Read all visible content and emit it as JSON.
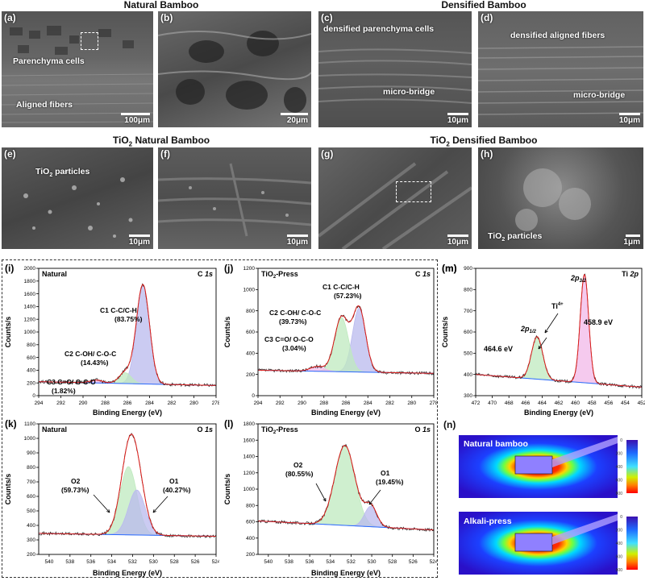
{
  "headers": {
    "natural": "Natural Bamboo",
    "densified": "Densified Bamboo",
    "tio2_natural_prefix": "TiO",
    "tio2_natural_sub": "2",
    "tio2_natural_rest": " Natural Bamboo",
    "tio2_densified_prefix": "TiO",
    "tio2_densified_sub": "2",
    "tio2_densified_rest": " Densified Bamboo"
  },
  "sem_panels": {
    "a": {
      "label": "(a)",
      "ann1": "Parenchyma cells",
      "ann2": "Aligned fibers",
      "scale": "100μm"
    },
    "b": {
      "label": "(b)",
      "scale": "20μm"
    },
    "c": {
      "label": "(c)",
      "ann1": "densified parenchyma cells",
      "ann2": "micro-bridge",
      "scale": "10μm"
    },
    "d": {
      "label": "(d)",
      "ann1": "densified aligned fibers",
      "ann2": "micro-bridge",
      "scale": "10μm"
    },
    "e": {
      "label": "(e)",
      "ann1_prefix": "TiO",
      "ann1_sub": "2",
      "ann1_rest": " particles",
      "scale": "10μm"
    },
    "f": {
      "label": "(f)",
      "scale": "10μm"
    },
    "g": {
      "label": "(g)",
      "scale": "10μm"
    },
    "h": {
      "label": "(h)",
      "ann1_prefix": "TiO",
      "ann1_sub": "2",
      "ann1_rest": " particles",
      "scale": "1μm"
    }
  },
  "chart_data": [
    {
      "panel": "(i)",
      "type": "line",
      "title": "Natural",
      "element": "C",
      "orbital": "1s",
      "xlabel": "Binding Energy (eV)",
      "ylabel": "Counts/s",
      "xlim": [
        294,
        278
      ],
      "ylim": [
        0,
        2000
      ],
      "xticks": [
        "294",
        "292",
        "290",
        "288",
        "286",
        "284",
        "282",
        "280",
        "278"
      ],
      "yticks": [
        "0",
        "200",
        "400",
        "600",
        "800",
        "1000",
        "1200",
        "1400",
        "1600",
        "1800",
        "2000"
      ],
      "peaks": [
        {
          "name": "C1",
          "center": 284.6,
          "height": 1560,
          "fwhm": 1.4,
          "color": "#b9b9ee",
          "annotation": "C1  C-C/C-H",
          "percent": "(83.75%)"
        },
        {
          "name": "C2",
          "center": 286.2,
          "height": 170,
          "fwhm": 1.3,
          "color": "#bfeabf",
          "annotation": "C2  C-OH/ C-O-C",
          "percent": "(14.43%)"
        },
        {
          "name": "C3",
          "center": 288.8,
          "height": 45,
          "fwhm": 1.3,
          "color": "#f2b8e8",
          "annotation": "C3  C=O/ O-C-O",
          "percent": "(1.82%)"
        }
      ],
      "baseline": {
        "left": 220,
        "right": 160
      }
    },
    {
      "panel": "(j)",
      "type": "line",
      "title_prefix": "TiO",
      "title_sub": "2",
      "title_rest": "-Press",
      "element": "C",
      "orbital": "1s",
      "xlabel": "Binding Energy (eV)",
      "ylabel": "Counts/s",
      "xlim": [
        294,
        278
      ],
      "ylim": [
        0,
        1200
      ],
      "xticks": [
        "294",
        "292",
        "290",
        "288",
        "286",
        "284",
        "282",
        "280",
        "278"
      ],
      "yticks": [
        "0",
        "200",
        "400",
        "600",
        "800",
        "1000",
        "1200"
      ],
      "peaks": [
        {
          "name": "C1",
          "center": 284.8,
          "height": 600,
          "fwhm": 1.4,
          "color": "#b9b9ee",
          "annotation": "C1  C-C/C-H",
          "percent": "(57.23%)"
        },
        {
          "name": "C2",
          "center": 286.4,
          "height": 510,
          "fwhm": 1.5,
          "color": "#bfeabf",
          "annotation": "C2  C-OH/ C-O-C",
          "percent": "(39.73%)"
        },
        {
          "name": "C3",
          "center": 288.6,
          "height": 45,
          "fwhm": 1.5,
          "color": "#f2b8e8",
          "annotation": "C3  C=O/ O-C-O",
          "percent": "(3.04%)"
        }
      ],
      "baseline": {
        "left": 240,
        "right": 210
      }
    },
    {
      "panel": "(m)",
      "type": "line",
      "element": "Ti",
      "orbital": "2p",
      "xlabel": "Binding Energy (eV)",
      "ylabel": "Counts/s",
      "xlim": [
        472,
        452
      ],
      "ylim": [
        300,
        900
      ],
      "xticks": [
        "472",
        "470",
        "468",
        "466",
        "464",
        "462",
        "460",
        "458",
        "456",
        "454",
        "452"
      ],
      "yticks": [
        "300",
        "400",
        "500",
        "600",
        "700",
        "800",
        "900"
      ],
      "peaks": [
        {
          "name": "2p3/2",
          "center": 458.9,
          "height": 510,
          "fwhm": 1.2,
          "color": "#f2b8e8",
          "annotation": "458.9 eV"
        },
        {
          "name": "2p1/2",
          "center": 464.6,
          "height": 200,
          "fwhm": 1.6,
          "color": "#bfeabf",
          "annotation": "464.6 eV"
        }
      ],
      "baseline": {
        "left": 400,
        "right": 340
      },
      "labels": {
        "p32_main": "2p",
        "p32_sub": "3/2",
        "p12_main": "2p",
        "p12_sub": "1/2",
        "ti_main": "Ti",
        "ti_sup": "4+"
      }
    },
    {
      "panel": "(k)",
      "type": "line",
      "title": "Natural",
      "element": "O",
      "orbital": "1s",
      "xlabel": "Binding Energy (eV)",
      "ylabel": "Counts/s",
      "xlim": [
        541,
        524
      ],
      "ylim": [
        200,
        1100
      ],
      "xticks": [
        "540",
        "538",
        "536",
        "534",
        "532",
        "530",
        "528",
        "526",
        "524"
      ],
      "yticks": [
        "200",
        "300",
        "400",
        "500",
        "600",
        "700",
        "800",
        "900",
        "1000",
        "1100"
      ],
      "peaks": [
        {
          "name": "O2",
          "center": 532.4,
          "height": 470,
          "fwhm": 1.9,
          "color": "#bfeabf",
          "annotation": "O2",
          "percent": "(59.73%)"
        },
        {
          "name": "O1",
          "center": 531.6,
          "height": 310,
          "fwhm": 1.9,
          "color": "#b9b9ee",
          "annotation": "O1",
          "percent": "(40.27%)"
        }
      ],
      "baseline": {
        "left": 345,
        "right": 325
      }
    },
    {
      "panel": "(l)",
      "type": "line",
      "title_prefix": "TiO",
      "title_sub": "2",
      "title_rest": "-Press",
      "element": "O",
      "orbital": "1s",
      "xlabel": "Binding Energy (eV)",
      "ylabel": "Counts/s",
      "xlim": [
        541,
        524
      ],
      "ylim": [
        200,
        1800
      ],
      "xticks": [
        "540",
        "538",
        "536",
        "534",
        "532",
        "530",
        "528",
        "526",
        "524"
      ],
      "yticks": [
        "200",
        "400",
        "600",
        "800",
        "1000",
        "1200",
        "1400",
        "1600",
        "1800"
      ],
      "peaks": [
        {
          "name": "O2",
          "center": 532.6,
          "height": 980,
          "fwhm": 2.3,
          "color": "#bfeabf",
          "annotation": "O2",
          "percent": "(80.55%)"
        },
        {
          "name": "O1",
          "center": 530.1,
          "height": 250,
          "fwhm": 1.4,
          "color": "#b9b9ee",
          "annotation": "O1",
          "percent": "(19.45%)"
        }
      ],
      "baseline": {
        "left": 610,
        "right": 500
      }
    }
  ],
  "panel_m_label": "(m)",
  "panel_n": {
    "label": "(n)",
    "top_title": "Natural bamboo",
    "bottom_title": "Alkali-press",
    "colorbar_ticks": [
      "0",
      "200",
      "400",
      "600",
      "800"
    ]
  }
}
